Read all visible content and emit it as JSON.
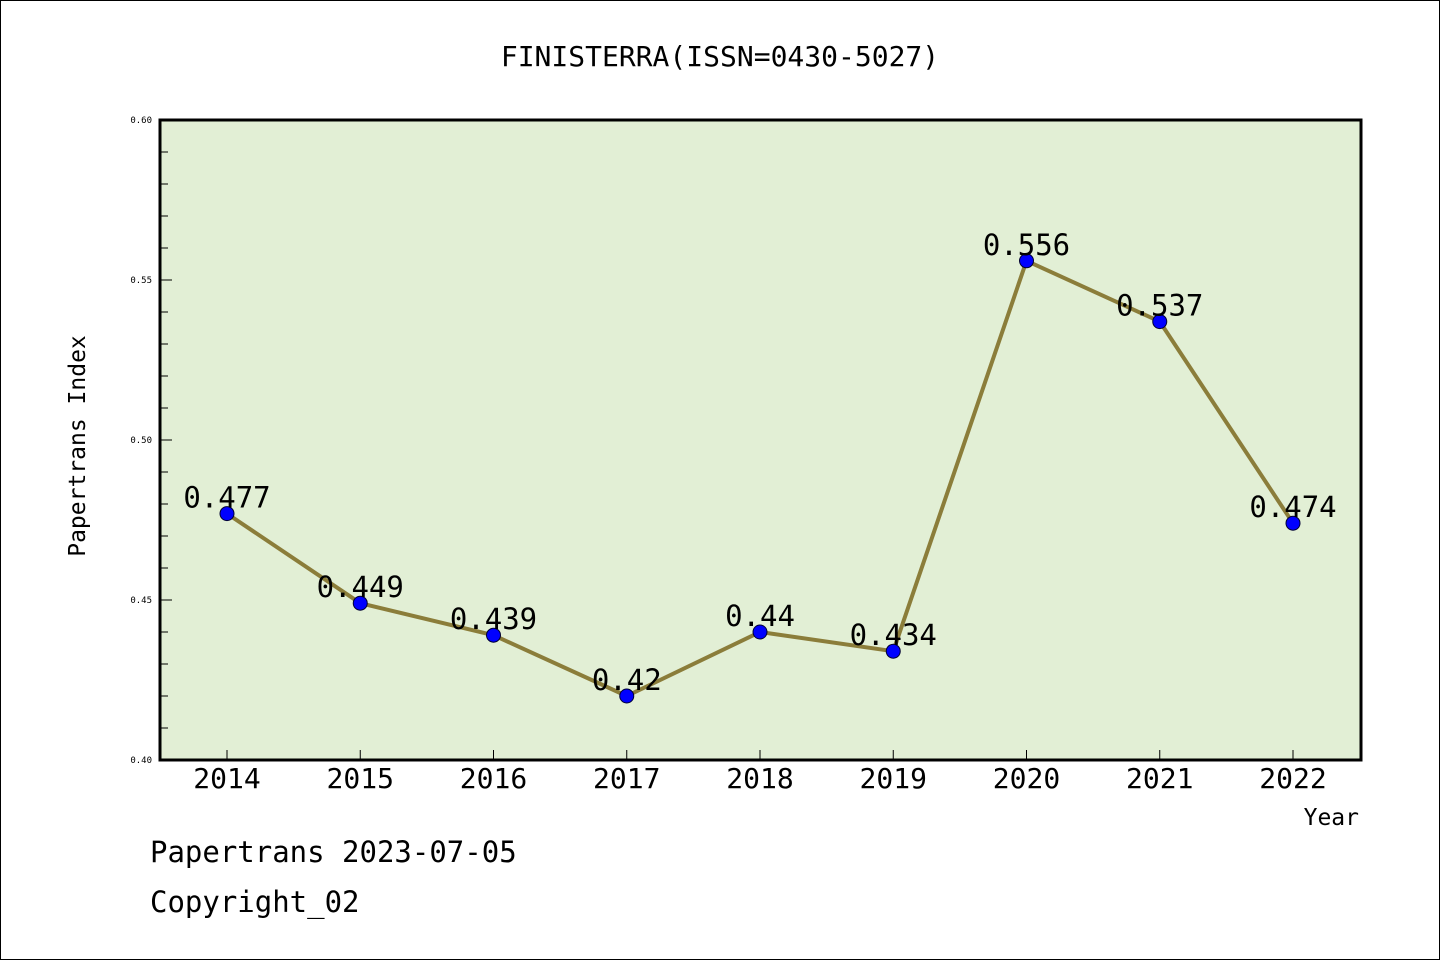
{
  "chart_data": {
    "type": "line",
    "title": "FINISTERRA(ISSN=0430-5027)",
    "xlabel": "Year",
    "ylabel": "Papertrans Index",
    "categories": [
      "2014",
      "2015",
      "2016",
      "2017",
      "2018",
      "2019",
      "2020",
      "2021",
      "2022"
    ],
    "series": [
      {
        "values": [
          0.477,
          0.449,
          0.439,
          0.42,
          0.44,
          0.434,
          0.556,
          0.537,
          0.474
        ],
        "labels": [
          "0.477",
          "0.449",
          "0.439",
          "0.42",
          "0.44",
          "0.434",
          "0.556",
          "0.537",
          "0.474"
        ]
      }
    ],
    "ylim": [
      0.4,
      0.6
    ],
    "yticks": [
      "0.40",
      "0.45",
      "0.50",
      "0.55",
      "0.60"
    ],
    "grid": false,
    "legend": "none",
    "colors": {
      "plot_background": "#e2efd5",
      "line": "#8b7d3a",
      "marker": "#0000ff",
      "axis": "#000000"
    }
  },
  "footer": {
    "line1": "Papertrans 2023-07-05",
    "line2": "Copyright_02"
  }
}
